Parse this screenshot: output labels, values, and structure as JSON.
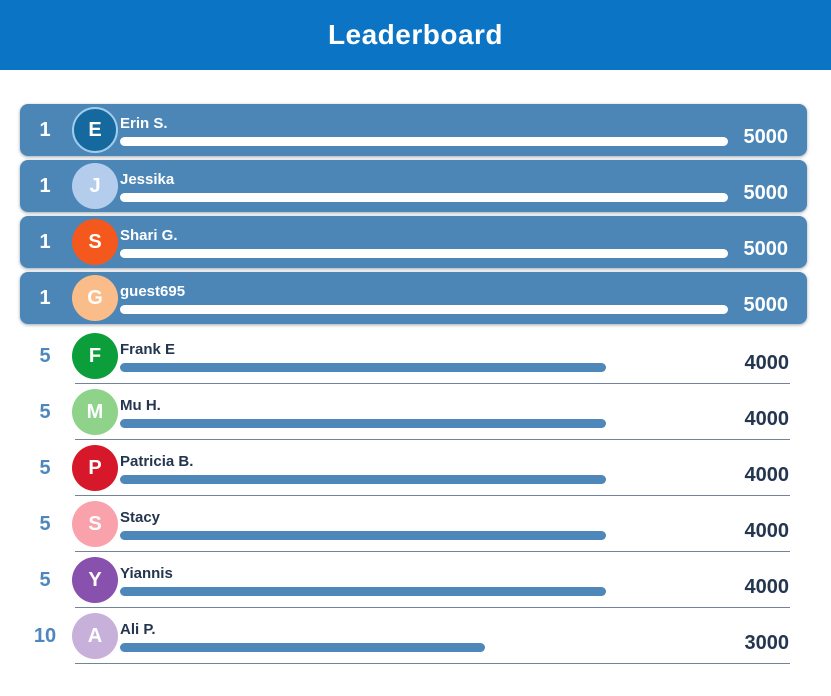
{
  "header": {
    "title": "Leaderboard"
  },
  "colors": {
    "page_bg": "#ffffff",
    "header_bg": "#0b74c4",
    "card_bg": "#4c86b7",
    "bar_blue": "#4e87b9",
    "rank_blue": "#4d87bc",
    "text_dark": "#24364f",
    "separator": "#73849a",
    "white": "#ffffff"
  },
  "leaderboard": {
    "max_score": 5000,
    "rows": [
      {
        "rank": "1",
        "initial": "E",
        "name": "Erin S.",
        "score": "5000",
        "pct": 100,
        "avatar_bg": "#16699f",
        "avatar_ring": "#9fcdec",
        "highlighted": true
      },
      {
        "rank": "1",
        "initial": "J",
        "name": "Jessika",
        "score": "5000",
        "pct": 100,
        "avatar_bg": "#b5cdec",
        "avatar_ring": null,
        "highlighted": true
      },
      {
        "rank": "1",
        "initial": "S",
        "name": "Shari G.",
        "score": "5000",
        "pct": 100,
        "avatar_bg": "#f4581c",
        "avatar_ring": null,
        "highlighted": true
      },
      {
        "rank": "1",
        "initial": "G",
        "name": "guest695",
        "score": "5000",
        "pct": 100,
        "avatar_bg": "#fabd8a",
        "avatar_ring": null,
        "highlighted": true
      },
      {
        "rank": "5",
        "initial": "F",
        "name": "Frank E",
        "score": "4000",
        "pct": 80,
        "avatar_bg": "#0d9e3c",
        "avatar_ring": null,
        "highlighted": false
      },
      {
        "rank": "5",
        "initial": "M",
        "name": "Mu H.",
        "score": "4000",
        "pct": 80,
        "avatar_bg": "#8ed389",
        "avatar_ring": null,
        "highlighted": false
      },
      {
        "rank": "5",
        "initial": "P",
        "name": "Patricia B.",
        "score": "4000",
        "pct": 80,
        "avatar_bg": "#d7182a",
        "avatar_ring": null,
        "highlighted": false
      },
      {
        "rank": "5",
        "initial": "S",
        "name": "Stacy",
        "score": "4000",
        "pct": 80,
        "avatar_bg": "#f9a2ac",
        "avatar_ring": null,
        "highlighted": false
      },
      {
        "rank": "5",
        "initial": "Y",
        "name": "Yiannis",
        "score": "4000",
        "pct": 80,
        "avatar_bg": "#8951ae",
        "avatar_ring": null,
        "highlighted": false
      },
      {
        "rank": "10",
        "initial": "A",
        "name": "Ali P.",
        "score": "3000",
        "pct": 60,
        "avatar_bg": "#c7b0d9",
        "avatar_ring": null,
        "highlighted": false
      }
    ]
  }
}
